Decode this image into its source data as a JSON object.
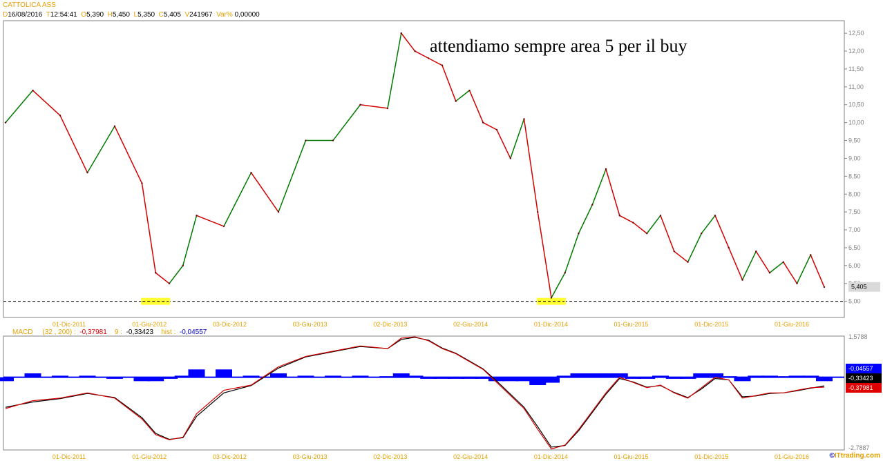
{
  "header": {
    "symbol": "CATTOLICA ASS",
    "date_label": "D",
    "date": "16/08/2016",
    "time_label": "T",
    "time": "12:54:41",
    "open_label": "O",
    "open": "5,390",
    "high_label": "H",
    "high": "5,450",
    "low_label": "L",
    "low": "5,350",
    "close_label": "C",
    "close": "5,405",
    "volume_label": "V",
    "volume": "241967",
    "var_label": "Var%",
    "var": "0,00000"
  },
  "annotation": "attendiamo sempre area 5 per il buy",
  "macd_header": {
    "name": "MACD",
    "params": "(32 , 200) :",
    "macd_value": "-0,37981",
    "signal_label": "9 :",
    "signal_value": "-0,33423",
    "hist_label": "hist :",
    "hist_value": "-0,04557"
  },
  "credit": {
    "copyright": "©",
    "site": "ITtrading.com"
  },
  "colors": {
    "up": "#007a00",
    "down": "#d40000",
    "hist": "#0000ff",
    "macd": "#d40000",
    "signal": "#000000",
    "support_box": "#ffff33",
    "label_orange": "#e6a000"
  },
  "chart_data": [
    {
      "type": "line",
      "panel": "price",
      "y_ticks": [
        "12,50",
        "12,00",
        "11,50",
        "11,00",
        "10,50",
        "10,00",
        "9,50",
        "9,00",
        "8,50",
        "8,00",
        "7,50",
        "7,00",
        "6,50",
        "6,00",
        "5,50",
        "5,00"
      ],
      "y_tick_values": [
        12.5,
        12,
        11.5,
        11,
        10.5,
        10,
        9.5,
        9,
        8.5,
        8,
        7.5,
        7,
        6.5,
        6,
        5.5,
        5
      ],
      "ylim": [
        4.55,
        12.85
      ],
      "x_ticks": [
        "01-Dic-2011",
        "01-Giu-2012",
        "03-Dic-2012",
        "03-Giu-2013",
        "02-Dic-2013",
        "02-Giu-2014",
        "01-Dic-2014",
        "01-Giu-2015",
        "01-Dic-2015",
        "01-Giu-2016"
      ],
      "last_price_label": "5,405",
      "support_level": 5.0,
      "support_markers": [
        "2012-07",
        "2014-12"
      ],
      "x": [
        "2011-08",
        "2011-10",
        "2011-12",
        "2012-02",
        "2012-04",
        "2012-06",
        "2012-07",
        "2012-08",
        "2012-09",
        "2012-10",
        "2012-12",
        "2013-02",
        "2013-04",
        "2013-06",
        "2013-08",
        "2013-10",
        "2013-12",
        "2014-01",
        "2014-02",
        "2014-03",
        "2014-04",
        "2014-05",
        "2014-06",
        "2014-07",
        "2014-08",
        "2014-09",
        "2014-10",
        "2014-11",
        "2014-12",
        "2015-01",
        "2015-02",
        "2015-03",
        "2015-04",
        "2015-05",
        "2015-06",
        "2015-07",
        "2015-08",
        "2015-09",
        "2015-10",
        "2015-11",
        "2015-12",
        "2016-01",
        "2016-02",
        "2016-03",
        "2016-04",
        "2016-05",
        "2016-06",
        "2016-07",
        "2016-08"
      ],
      "y": [
        10.0,
        10.9,
        10.2,
        8.6,
        9.9,
        8.3,
        5.8,
        5.5,
        6.0,
        7.4,
        7.1,
        8.6,
        7.5,
        9.5,
        9.5,
        10.5,
        10.4,
        12.5,
        12.0,
        11.8,
        11.6,
        10.6,
        10.9,
        10.0,
        9.8,
        9.0,
        10.1,
        7.5,
        5.1,
        5.8,
        6.9,
        7.7,
        8.7,
        7.4,
        7.2,
        6.9,
        7.4,
        6.4,
        6.1,
        6.9,
        7.4,
        6.5,
        5.6,
        6.4,
        5.8,
        6.1,
        5.5,
        6.3,
        5.4
      ]
    },
    {
      "type": "line",
      "panel": "macd",
      "y_ticks": [
        "1,5788",
        "-2,7887"
      ],
      "y_tick_values": [
        1.5788,
        -2.7887
      ],
      "ylim": [
        -2.7887,
        1.5788
      ],
      "x_ticks": [
        "01-Dic-2011",
        "01-Giu-2012",
        "03-Dic-2012",
        "03-Giu-2013",
        "02-Dic-2013",
        "02-Giu-2014",
        "01-Dic-2014",
        "01-Giu-2015",
        "01-Dic-2015",
        "01-Giu-2016"
      ],
      "value_labels": [
        "-0,04557",
        "-0,33423",
        "-0,37981"
      ],
      "x": [
        "2011-08",
        "2011-10",
        "2011-12",
        "2012-02",
        "2012-04",
        "2012-06",
        "2012-07",
        "2012-08",
        "2012-09",
        "2012-10",
        "2012-12",
        "2013-02",
        "2013-04",
        "2013-06",
        "2013-08",
        "2013-10",
        "2013-12",
        "2014-01",
        "2014-02",
        "2014-03",
        "2014-04",
        "2014-05",
        "2014-06",
        "2014-07",
        "2014-08",
        "2014-09",
        "2014-10",
        "2014-11",
        "2014-12",
        "2015-01",
        "2015-02",
        "2015-03",
        "2015-04",
        "2015-05",
        "2015-06",
        "2015-07",
        "2015-08",
        "2015-09",
        "2015-10",
        "2015-11",
        "2015-12",
        "2016-01",
        "2016-02",
        "2016-03",
        "2016-04",
        "2016-05",
        "2016-06",
        "2016-07",
        "2016-08"
      ],
      "series": [
        {
          "name": "MACD",
          "values": [
            -1.2,
            -0.9,
            -0.8,
            -0.6,
            -0.8,
            -1.6,
            -2.2,
            -2.4,
            -2.3,
            -1.4,
            -0.5,
            -0.3,
            0.4,
            0.8,
            1.0,
            1.2,
            1.1,
            1.5,
            1.55,
            1.4,
            1.1,
            0.9,
            0.6,
            0.3,
            -0.2,
            -0.7,
            -1.2,
            -2.0,
            -2.75,
            -2.6,
            -2.0,
            -1.3,
            -0.6,
            0.0,
            -0.2,
            -0.4,
            -0.3,
            -0.6,
            -0.8,
            -0.4,
            0.0,
            -0.1,
            -0.8,
            -0.7,
            -0.6,
            -0.6,
            -0.5,
            -0.4,
            -0.38
          ]
        },
        {
          "name": "9",
          "values": [
            -1.15,
            -0.95,
            -0.82,
            -0.62,
            -0.78,
            -1.55,
            -2.15,
            -2.38,
            -2.32,
            -1.5,
            -0.6,
            -0.32,
            0.35,
            0.78,
            0.98,
            1.18,
            1.1,
            1.45,
            1.53,
            1.42,
            1.12,
            0.92,
            0.62,
            0.32,
            -0.15,
            -0.65,
            -1.15,
            -1.9,
            -2.68,
            -2.62,
            -2.05,
            -1.35,
            -0.65,
            -0.05,
            -0.18,
            -0.38,
            -0.32,
            -0.58,
            -0.78,
            -0.45,
            -0.05,
            -0.1,
            -0.75,
            -0.72,
            -0.62,
            -0.6,
            -0.52,
            -0.42,
            -0.33
          ]
        },
        {
          "name": "hist",
          "values": [
            -0.05,
            0.05,
            0.02,
            0.02,
            -0.02,
            -0.05,
            -0.05,
            -0.02,
            0.02,
            0.1,
            0.1,
            0.02,
            0.05,
            0.02,
            0.02,
            0.02,
            0.0,
            0.05,
            0.02,
            -0.02,
            -0.02,
            -0.02,
            -0.02,
            -0.02,
            -0.05,
            -0.05,
            -0.05,
            -0.1,
            -0.07,
            0.02,
            0.05,
            0.05,
            0.05,
            0.05,
            -0.02,
            -0.02,
            0.02,
            -0.02,
            -0.02,
            0.05,
            0.05,
            0.0,
            -0.05,
            0.02,
            0.02,
            0.0,
            0.02,
            0.02,
            -0.05
          ]
        }
      ]
    }
  ]
}
